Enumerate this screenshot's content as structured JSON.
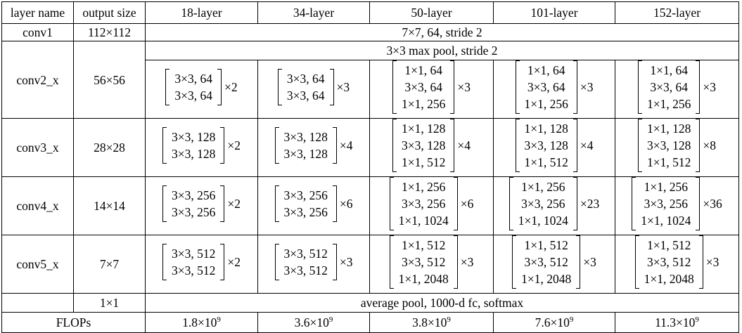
{
  "table": {
    "headers": [
      "layer name",
      "output size",
      "18-layer",
      "34-layer",
      "50-layer",
      "101-layer",
      "152-layer"
    ],
    "conv1": {
      "name": "conv1",
      "size": "112×112",
      "desc": "7×7, 64, stride 2"
    },
    "conv2_pool": "3×3 max pool, stride 2",
    "stages": [
      {
        "name": "conv2_x",
        "size": "56×56",
        "blocks": [
          {
            "lines": [
              "3×3, 64",
              "3×3, 64"
            ],
            "mult": "×2"
          },
          {
            "lines": [
              "3×3, 64",
              "3×3, 64"
            ],
            "mult": "×3"
          },
          {
            "lines": [
              "1×1, 64",
              "3×3, 64",
              "1×1, 256"
            ],
            "mult": "×3"
          },
          {
            "lines": [
              "1×1, 64",
              "3×3, 64",
              "1×1, 256"
            ],
            "mult": "×3"
          },
          {
            "lines": [
              "1×1, 64",
              "3×3, 64",
              "1×1, 256"
            ],
            "mult": "×3"
          }
        ]
      },
      {
        "name": "conv3_x",
        "size": "28×28",
        "blocks": [
          {
            "lines": [
              "3×3, 128",
              "3×3, 128"
            ],
            "mult": "×2"
          },
          {
            "lines": [
              "3×3, 128",
              "3×3, 128"
            ],
            "mult": "×4"
          },
          {
            "lines": [
              "1×1, 128",
              "3×3, 128",
              "1×1, 512"
            ],
            "mult": "×4"
          },
          {
            "lines": [
              "1×1, 128",
              "3×3, 128",
              "1×1, 512"
            ],
            "mult": "×4"
          },
          {
            "lines": [
              "1×1, 128",
              "3×3, 128",
              "1×1, 512"
            ],
            "mult": "×8"
          }
        ]
      },
      {
        "name": "conv4_x",
        "size": "14×14",
        "blocks": [
          {
            "lines": [
              "3×3, 256",
              "3×3, 256"
            ],
            "mult": "×2"
          },
          {
            "lines": [
              "3×3, 256",
              "3×3, 256"
            ],
            "mult": "×6"
          },
          {
            "lines": [
              "1×1, 256",
              "3×3, 256",
              "1×1, 1024"
            ],
            "mult": "×6"
          },
          {
            "lines": [
              "1×1, 256",
              "3×3, 256",
              "1×1, 1024"
            ],
            "mult": "×23"
          },
          {
            "lines": [
              "1×1, 256",
              "3×3, 256",
              "1×1, 1024"
            ],
            "mult": "×36"
          }
        ]
      },
      {
        "name": "conv5_x",
        "size": "7×7",
        "blocks": [
          {
            "lines": [
              "3×3, 512",
              "3×3, 512"
            ],
            "mult": "×2"
          },
          {
            "lines": [
              "3×3, 512",
              "3×3, 512"
            ],
            "mult": "×3"
          },
          {
            "lines": [
              "1×1, 512",
              "3×3, 512",
              "1×1, 2048"
            ],
            "mult": "×3"
          },
          {
            "lines": [
              "1×1, 512",
              "3×3, 512",
              "1×1, 2048"
            ],
            "mult": "×3"
          },
          {
            "lines": [
              "1×1, 512",
              "3×3, 512",
              "1×1, 2048"
            ],
            "mult": "×3"
          }
        ]
      }
    ],
    "final": {
      "size": "1×1",
      "desc": "average pool, 1000-d fc, softmax"
    },
    "flops": {
      "label": "FLOPs",
      "values": [
        {
          "base": "1.8×10",
          "exp": "9"
        },
        {
          "base": "3.6×10",
          "exp": "9"
        },
        {
          "base": "3.8×10",
          "exp": "9"
        },
        {
          "base": "7.6×10",
          "exp": "9"
        },
        {
          "base": "11.3×10",
          "exp": "9"
        }
      ]
    }
  }
}
